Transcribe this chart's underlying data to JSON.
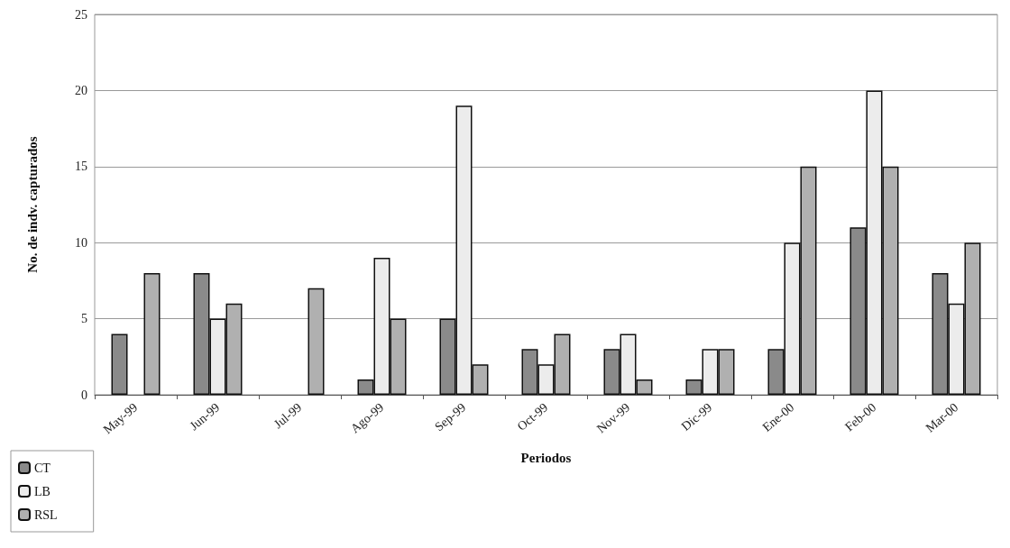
{
  "chart_data": {
    "type": "bar",
    "xlabel": "Periodos",
    "ylabel": "No. de indv. capturados",
    "categories": [
      "May-99",
      "Jun-99",
      "Jul-99",
      "Ago-99",
      "Sep-99",
      "Oct-99",
      "Nov-99",
      "Dic-99",
      "Ene-00",
      "Feb-00",
      "Mar-00"
    ],
    "series": [
      {
        "name": "CT",
        "color": "#8a8a8a",
        "values": [
          4,
          8,
          0,
          1,
          5,
          3,
          3,
          1,
          3,
          11,
          8
        ]
      },
      {
        "name": "LB",
        "color": "#ececec",
        "values": [
          0,
          5,
          0,
          9,
          19,
          2,
          4,
          3,
          10,
          20,
          6
        ]
      },
      {
        "name": "RSL",
        "color": "#b0b0b0",
        "values": [
          8,
          6,
          7,
          5,
          2,
          4,
          1,
          3,
          15,
          15,
          10
        ]
      }
    ],
    "ylim": [
      0,
      25
    ],
    "yticks": [
      0,
      5,
      10,
      15,
      20,
      25
    ],
    "grid": "y",
    "legend": "bottom left"
  }
}
